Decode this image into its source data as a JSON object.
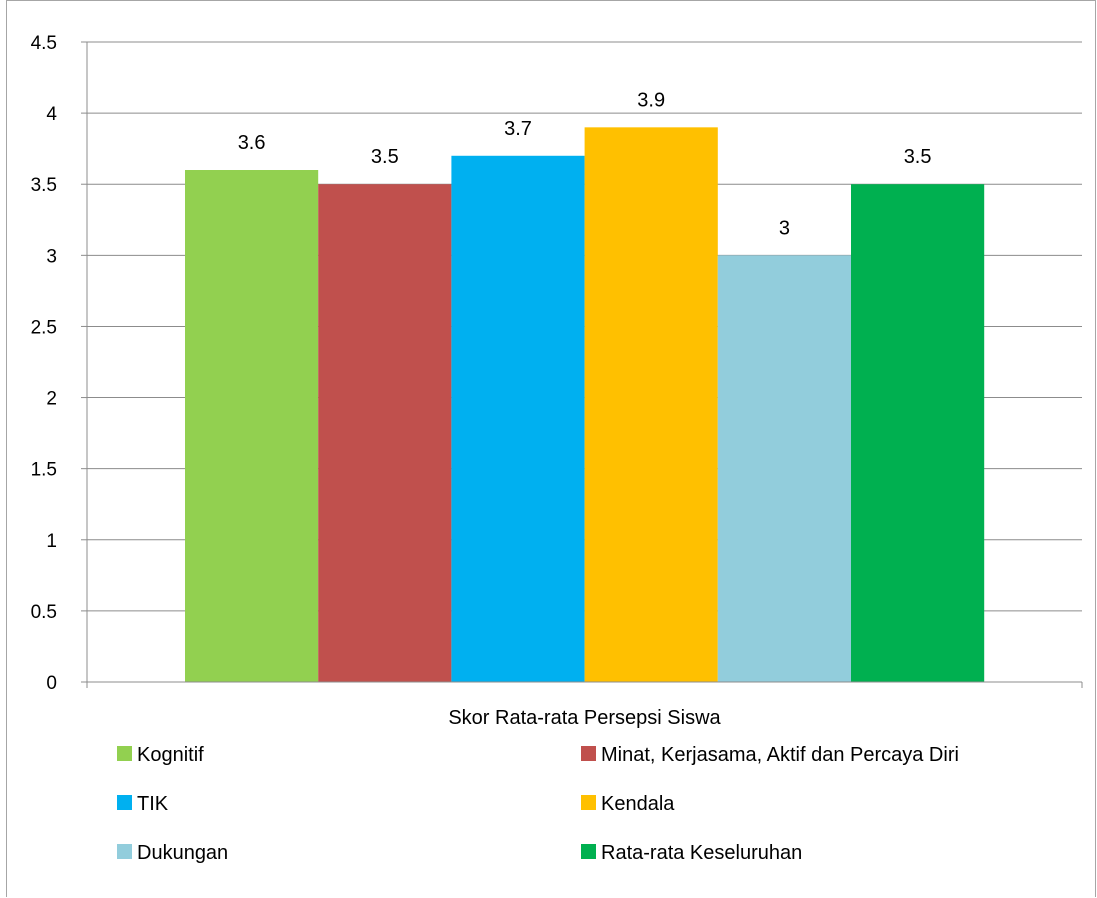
{
  "chart_data": {
    "type": "bar",
    "title": "",
    "xlabel": "",
    "ylabel": "",
    "category_label": "Skor Rata-rata Persepsi Siswa",
    "ylim": [
      0,
      4.5
    ],
    "yticks": [
      "0",
      "0.5",
      "1",
      "1.5",
      "2",
      "2.5",
      "3",
      "3.5",
      "4",
      "4.5"
    ],
    "grid": true,
    "legend_position": "bottom",
    "series": [
      {
        "name": "Kognitif",
        "value": 3.6,
        "label": "3.6",
        "color": "#92d050"
      },
      {
        "name": "Minat, Kerjasama, Aktif dan Percaya Diri",
        "value": 3.5,
        "label": "3.5",
        "color": "#c0504d"
      },
      {
        "name": "TIK",
        "value": 3.7,
        "label": "3.7",
        "color": "#00b0f0"
      },
      {
        "name": "Kendala",
        "value": 3.9,
        "label": "3.9",
        "color": "#ffc000"
      },
      {
        "name": "Dukungan",
        "value": 3.0,
        "label": "3",
        "color": "#92cddc"
      },
      {
        "name": "Rata-rata Keseluruhan",
        "value": 3.5,
        "label": "3.5",
        "color": "#00b050"
      }
    ]
  }
}
